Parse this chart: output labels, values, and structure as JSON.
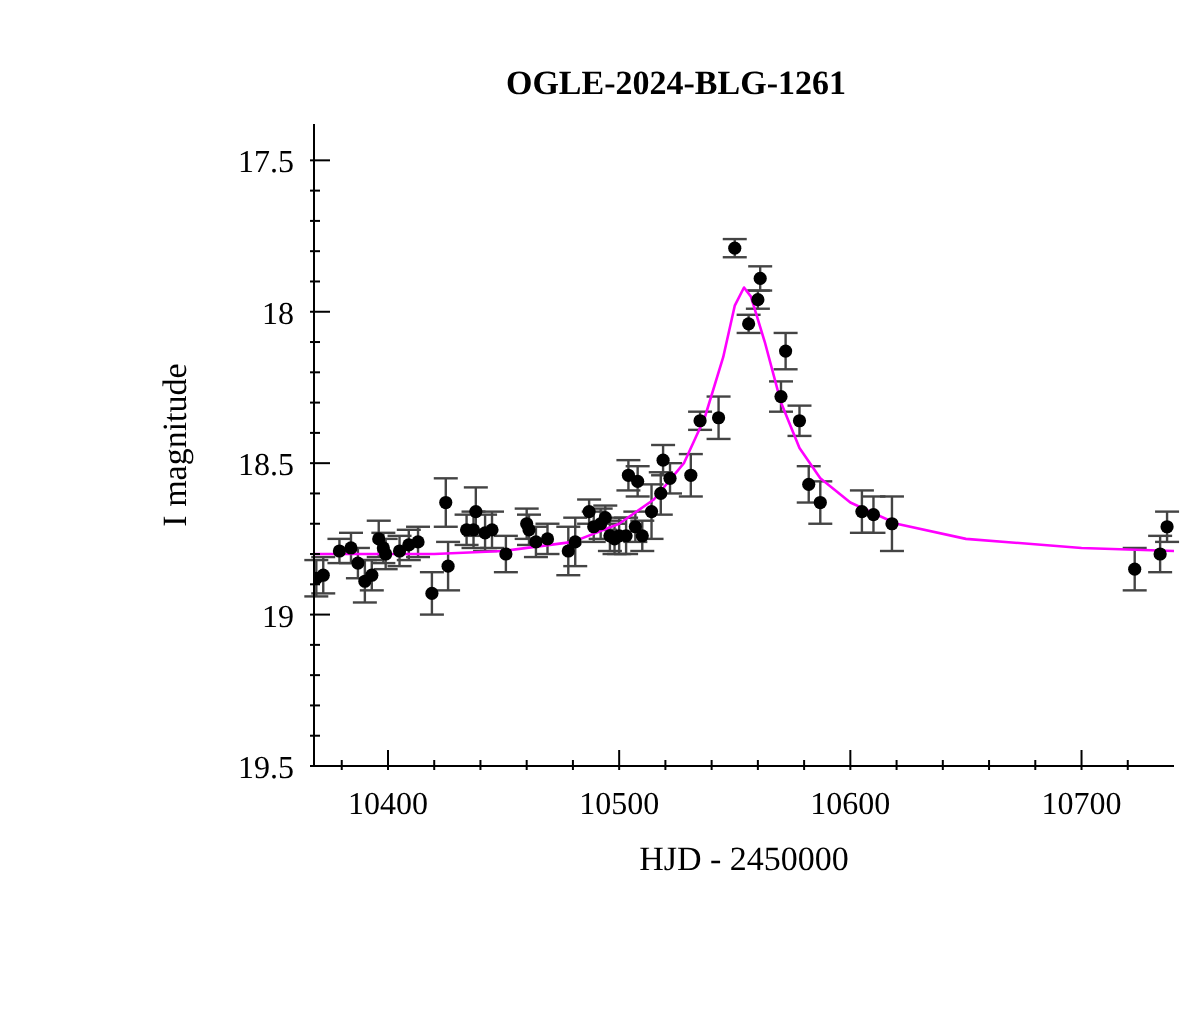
{
  "chart_data": {
    "type": "scatter",
    "title": "OGLE-2024-BLG-1261",
    "xlabel": "HJD - 2450000",
    "ylabel": "I magnitude",
    "xlim": [
      10368,
      10740
    ],
    "ylim": [
      19.5,
      17.38
    ],
    "xticks": [
      {
        "value": 10380,
        "label": null
      },
      10400,
      {
        "value": 10420,
        "label": null
      },
      {
        "value": 10440,
        "label": null
      },
      {
        "value": 10460,
        "label": null
      },
      {
        "value": 10480,
        "label": null
      },
      10500,
      {
        "value": 10520,
        "label": null
      },
      {
        "value": 10540,
        "label": null
      },
      {
        "value": 10560,
        "label": null
      },
      {
        "value": 10580,
        "label": null
      },
      10600,
      {
        "value": 10620,
        "label": null
      },
      {
        "value": 10640,
        "label": null
      },
      {
        "value": 10660,
        "label": null
      },
      {
        "value": 10680,
        "label": null
      },
      10700,
      {
        "value": 10720,
        "label": null
      }
    ],
    "yticks": [
      17.5,
      {
        "value": 17.6,
        "label": null
      },
      {
        "value": 17.7,
        "label": null
      },
      {
        "value": 17.8,
        "label": null
      },
      {
        "value": 17.9,
        "label": null
      },
      18,
      {
        "value": 18.1,
        "label": null
      },
      {
        "value": 18.2,
        "label": null
      },
      {
        "value": 18.3,
        "label": null
      },
      {
        "value": 18.4,
        "label": null
      },
      18.5,
      {
        "value": 18.6,
        "label": null
      },
      {
        "value": 18.7,
        "label": null
      },
      {
        "value": 18.8,
        "label": null
      },
      {
        "value": 18.9,
        "label": null
      },
      19,
      {
        "value": 19.1,
        "label": null
      },
      {
        "value": 19.2,
        "label": null
      },
      {
        "value": 19.3,
        "label": null
      },
      {
        "value": 19.4,
        "label": null
      },
      19.5
    ],
    "grid": false,
    "series": [
      {
        "color": "#000000",
        "marker": "circle",
        "x": [
          10369,
          10372,
          10379,
          10384,
          10387,
          10390,
          10393,
          10396,
          10398,
          10399,
          10405,
          10409,
          10413,
          10419,
          10425,
          10426,
          10434,
          10437,
          10438,
          10442,
          10445,
          10451,
          10460,
          10461,
          10464,
          10469,
          10478,
          10481,
          10487,
          10489,
          10492,
          10494,
          10496,
          10498,
          10500,
          10503,
          10504,
          10507,
          10508,
          10510,
          10514,
          10518,
          10519,
          10522,
          10531,
          10535,
          10543,
          10550,
          10556,
          10560,
          10561,
          10570,
          10572,
          10578,
          10582,
          10587,
          10605,
          10610,
          10618,
          10723,
          10734,
          10737
        ],
        "values": [
          18.88,
          18.87,
          18.79,
          18.78,
          18.83,
          18.89,
          18.87,
          18.75,
          18.78,
          18.8,
          18.79,
          18.77,
          18.76,
          18.93,
          18.63,
          18.84,
          18.72,
          18.72,
          18.66,
          18.73,
          18.72,
          18.8,
          18.7,
          18.72,
          18.76,
          18.75,
          18.79,
          18.76,
          18.66,
          18.71,
          18.7,
          18.68,
          18.74,
          18.75,
          18.74,
          18.74,
          18.54,
          18.71,
          18.56,
          18.74,
          18.66,
          18.6,
          18.49,
          18.55,
          18.54,
          18.36,
          18.35,
          17.79,
          18.04,
          17.96,
          17.89,
          18.28,
          18.13,
          18.36,
          18.57,
          18.63,
          18.66,
          18.67,
          18.7,
          18.85,
          18.8,
          18.71
        ],
        "errors": [
          0.06,
          0.06,
          0.04,
          0.05,
          0.05,
          0.07,
          0.05,
          0.06,
          0.05,
          0.05,
          0.05,
          0.05,
          0.05,
          0.07,
          0.08,
          0.08,
          0.05,
          0.06,
          0.08,
          0.06,
          0.06,
          0.06,
          0.05,
          0.05,
          0.05,
          0.05,
          0.08,
          0.08,
          0.04,
          0.05,
          0.05,
          0.04,
          0.05,
          0.05,
          0.06,
          0.06,
          0.05,
          0.05,
          0.05,
          0.05,
          0.09,
          0.07,
          0.05,
          0.05,
          0.07,
          0.03,
          0.07,
          0.03,
          0.03,
          0.03,
          0.04,
          0.05,
          0.06,
          0.05,
          0.06,
          0.07,
          0.07,
          0.06,
          0.09,
          0.07,
          0.06,
          0.05
        ]
      },
      {
        "type": "line",
        "color": "#ff00ff",
        "marker": "none",
        "line_style": "solid",
        "x": [
          10368,
          10420,
          10450,
          10480,
          10500,
          10515,
          10528,
          10537,
          10545,
          10550,
          10554,
          10557,
          10563,
          10570,
          10578,
          10587,
          10600,
          10620,
          10650,
          10700,
          10740
        ],
        "values": [
          18.8,
          18.8,
          18.79,
          18.76,
          18.7,
          18.62,
          18.5,
          18.35,
          18.15,
          17.98,
          17.92,
          17.95,
          18.1,
          18.3,
          18.45,
          18.55,
          18.63,
          18.7,
          18.75,
          18.78,
          18.79
        ]
      }
    ]
  }
}
